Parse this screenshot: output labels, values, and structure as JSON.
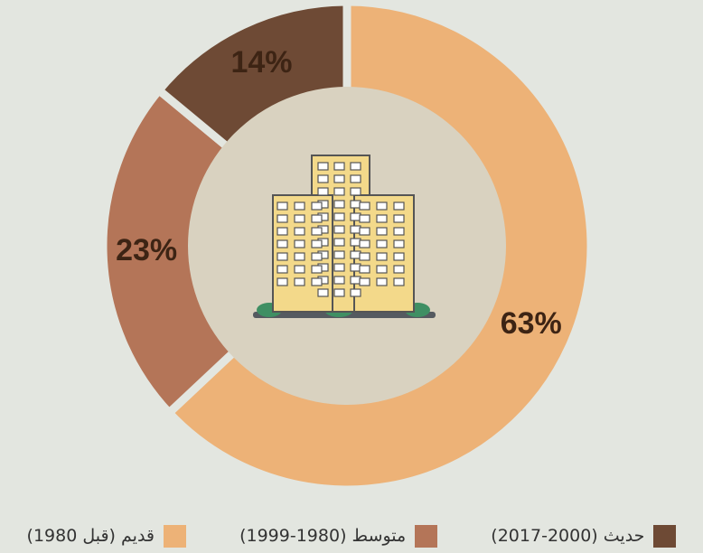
{
  "chart_data": {
    "type": "pie",
    "categories": [
      "قديم (قبل 1980)",
      "متوسط (1980-1999)",
      "حديث (2000-2017)"
    ],
    "values": [
      63,
      23,
      14
    ],
    "value_labels": [
      "63%",
      "23%",
      "14%"
    ],
    "colors": [
      "#edb277",
      "#b47558",
      "#6e4a35"
    ]
  }
}
